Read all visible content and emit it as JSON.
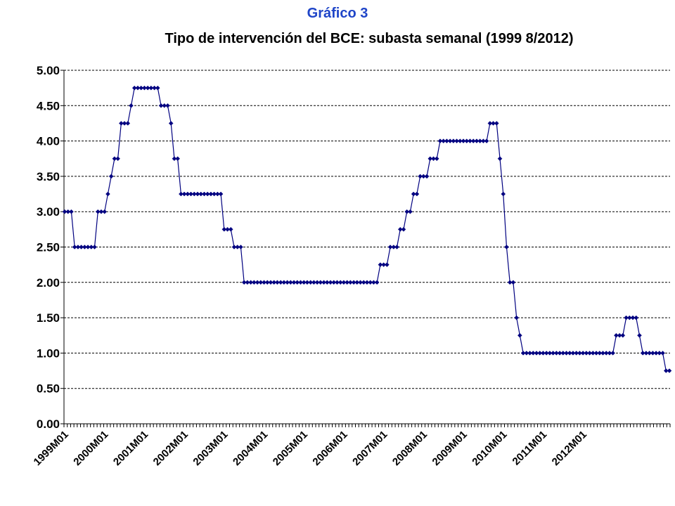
{
  "header": {
    "figure_label": "Gráfico 3",
    "title": "Tipo de intervención del BCE: subasta semanal (1999 8/2012)"
  },
  "colors": {
    "series": "#000080",
    "label": "#1f45c8"
  },
  "chart_data": {
    "type": "line",
    "title": "Tipo de intervención del BCE: subasta semanal (1999 8/2012)",
    "xlabel": "",
    "ylabel": "",
    "ylim": [
      0,
      5
    ],
    "yticks": [
      "0.00",
      "0.50",
      "1.00",
      "1.50",
      "2.00",
      "2.50",
      "3.00",
      "3.50",
      "4.00",
      "4.50",
      "5.00"
    ],
    "x_tick_labels": [
      "1999M01",
      "2000M01",
      "2001M01",
      "2002M01",
      "2003M01",
      "2004M01",
      "2005M01",
      "2006M01",
      "2007M01",
      "2008M01",
      "2009M01",
      "2010M01",
      "2011M01",
      "2012M01"
    ],
    "x_start": "1999M01",
    "x_end": "2012M08",
    "grid": "horizontal dashed",
    "legend": "none",
    "marker": "diamond",
    "series": [
      {
        "values": [
          3.0,
          3.0,
          3.0,
          2.5,
          2.5,
          2.5,
          2.5,
          2.5,
          2.5,
          2.5,
          3.0,
          3.0,
          3.0,
          3.25,
          3.5,
          3.75,
          3.75,
          4.25,
          4.25,
          4.25,
          4.5,
          4.75,
          4.75,
          4.75,
          4.75,
          4.75,
          4.75,
          4.75,
          4.75,
          4.5,
          4.5,
          4.5,
          4.25,
          3.75,
          3.75,
          3.25,
          3.25,
          3.25,
          3.25,
          3.25,
          3.25,
          3.25,
          3.25,
          3.25,
          3.25,
          3.25,
          3.25,
          3.25,
          2.75,
          2.75,
          2.75,
          2.5,
          2.5,
          2.5,
          2.0,
          2.0,
          2.0,
          2.0,
          2.0,
          2.0,
          2.0,
          2.0,
          2.0,
          2.0,
          2.0,
          2.0,
          2.0,
          2.0,
          2.0,
          2.0,
          2.0,
          2.0,
          2.0,
          2.0,
          2.0,
          2.0,
          2.0,
          2.0,
          2.0,
          2.0,
          2.0,
          2.0,
          2.0,
          2.0,
          2.0,
          2.0,
          2.0,
          2.0,
          2.0,
          2.0,
          2.0,
          2.0,
          2.0,
          2.0,
          2.0,
          2.25,
          2.25,
          2.25,
          2.5,
          2.5,
          2.5,
          2.75,
          2.75,
          3.0,
          3.0,
          3.25,
          3.25,
          3.5,
          3.5,
          3.5,
          3.75,
          3.75,
          3.75,
          4.0,
          4.0,
          4.0,
          4.0,
          4.0,
          4.0,
          4.0,
          4.0,
          4.0,
          4.0,
          4.0,
          4.0,
          4.0,
          4.0,
          4.0,
          4.25,
          4.25,
          4.25,
          3.75,
          3.25,
          2.5,
          2.0,
          2.0,
          1.5,
          1.25,
          1.0,
          1.0,
          1.0,
          1.0,
          1.0,
          1.0,
          1.0,
          1.0,
          1.0,
          1.0,
          1.0,
          1.0,
          1.0,
          1.0,
          1.0,
          1.0,
          1.0,
          1.0,
          1.0,
          1.0,
          1.0,
          1.0,
          1.0,
          1.0,
          1.0,
          1.0,
          1.0,
          1.0,
          1.25,
          1.25,
          1.25,
          1.5,
          1.5,
          1.5,
          1.5,
          1.25,
          1.0,
          1.0,
          1.0,
          1.0,
          1.0,
          1.0,
          1.0,
          0.75,
          0.75
        ]
      }
    ]
  }
}
